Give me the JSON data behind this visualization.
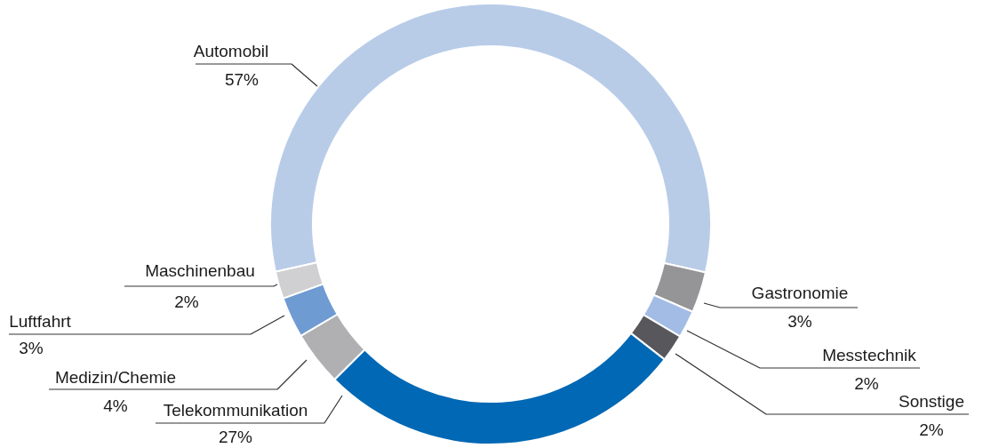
{
  "chart_data": {
    "type": "donut",
    "categories": [
      "Automobil",
      "Gastronomie",
      "Messtechnik",
      "Sonstige",
      "Telekommunikation",
      "Medizin/Chemie",
      "Luftfahrt",
      "Maschinenbau"
    ],
    "values": [
      57,
      3,
      2,
      2,
      27,
      4,
      3,
      2
    ],
    "value_labels": [
      "57%",
      "3%",
      "2%",
      "2%",
      "27%",
      "4%",
      "3%",
      "2%"
    ],
    "colors": [
      "#b8cce8",
      "#959597",
      "#a3bce6",
      "#58585c",
      "#0068b4",
      "#b0b0b2",
      "#6f9bd3",
      "#d0d0d2"
    ]
  }
}
